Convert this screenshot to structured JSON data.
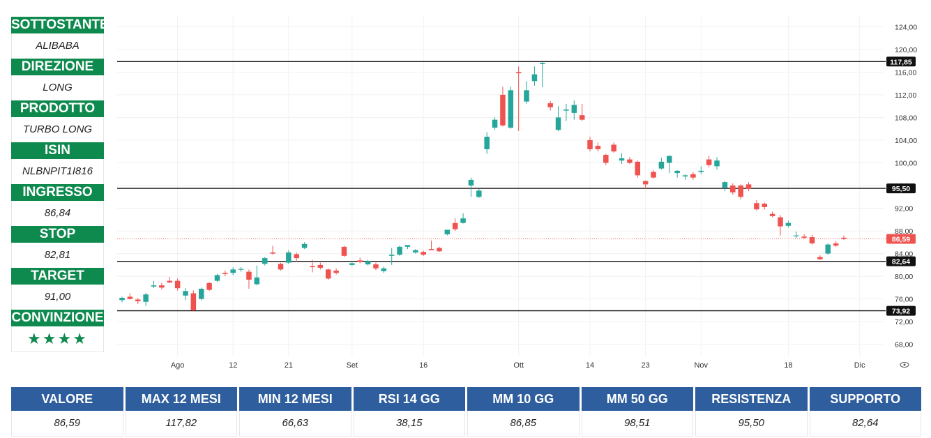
{
  "sidebar": {
    "items": [
      {
        "label": "SOTTOSTANTE",
        "value": "ALIBABA"
      },
      {
        "label": "DIREZIONE",
        "value": "LONG"
      },
      {
        "label": "PRODOTTO",
        "value": "TURBO LONG"
      },
      {
        "label": "ISIN",
        "value": "NLBNPIT1I816"
      },
      {
        "label": "INGRESSO",
        "value": "86,84"
      },
      {
        "label": "STOP",
        "value": "82,81"
      },
      {
        "label": "TARGET",
        "value": "91,00"
      }
    ],
    "conviction_label": "CONVINZIONE",
    "conviction_stars": "★★★★"
  },
  "table": {
    "headers": [
      "VALORE",
      "MAX 12 MESI",
      "MIN 12 MESI",
      "RSI 14 GG",
      "MM 10 GG",
      "MM 50 GG",
      "RESISTENZA",
      "SUPPORTO"
    ],
    "values": [
      "86,59",
      "117,82",
      "66,63",
      "38,15",
      "86,85",
      "98,51",
      "95,50",
      "82,64"
    ]
  },
  "colors": {
    "green": "#0f8a4f",
    "blue": "#2e5e9e",
    "up_candle": "#26a69a",
    "down_candle": "#ef5350"
  },
  "chart_data": {
    "type": "candlestick",
    "ylim": [
      66,
      126
    ],
    "y_ticks": [
      68,
      72,
      76,
      80,
      84,
      88,
      92,
      96,
      100,
      104,
      108,
      112,
      116,
      120,
      124
    ],
    "y_tick_labels": [
      "68,00",
      "72,00",
      "76,00",
      "80,00",
      "84,00",
      "88,00",
      "92,00",
      "96,00",
      "100,00",
      "104,00",
      "108,00",
      "112,00",
      "116,00",
      "120,00",
      "124,00"
    ],
    "x_labels": [
      {
        "label": "Ago",
        "index": 7
      },
      {
        "label": "12",
        "index": 14
      },
      {
        "label": "21",
        "index": 21
      },
      {
        "label": "Set",
        "index": 29
      },
      {
        "label": "16",
        "index": 38
      },
      {
        "label": "Ott",
        "index": 50
      },
      {
        "label": "14",
        "index": 59
      },
      {
        "label": "23",
        "index": 66
      },
      {
        "label": "Nov",
        "index": 73
      },
      {
        "label": "18",
        "index": 84
      },
      {
        "label": "Dic",
        "index": 93
      }
    ],
    "levels": [
      {
        "value": 117.85,
        "label": "117,85",
        "style": "solid"
      },
      {
        "value": 95.5,
        "label": "95,50",
        "style": "solid"
      },
      {
        "value": 82.64,
        "label": "82,64",
        "style": "solid"
      },
      {
        "value": 73.92,
        "label": "73,92",
        "style": "solid"
      }
    ],
    "last_price": {
      "value": 86.59,
      "label": "86,59"
    },
    "ohlc": [
      {
        "o": 75.8,
        "h": 76.4,
        "l": 75.4,
        "c": 76.2
      },
      {
        "o": 76.4,
        "h": 77.0,
        "l": 75.9,
        "c": 76.0
      },
      {
        "o": 75.9,
        "h": 76.2,
        "l": 75.1,
        "c": 75.6
      },
      {
        "o": 75.5,
        "h": 77.1,
        "l": 74.8,
        "c": 76.8
      },
      {
        "o": 78.2,
        "h": 79.2,
        "l": 77.9,
        "c": 78.4
      },
      {
        "o": 78.4,
        "h": 78.8,
        "l": 77.7,
        "c": 78.0
      },
      {
        "o": 79.2,
        "h": 79.9,
        "l": 78.8,
        "c": 78.9
      },
      {
        "o": 79.2,
        "h": 79.6,
        "l": 77.5,
        "c": 77.9
      },
      {
        "o": 76.6,
        "h": 77.9,
        "l": 75.8,
        "c": 77.4
      },
      {
        "o": 77.0,
        "h": 77.5,
        "l": 73.8,
        "c": 74.0
      },
      {
        "o": 76.0,
        "h": 78.0,
        "l": 75.8,
        "c": 77.8
      },
      {
        "o": 78.8,
        "h": 79.0,
        "l": 77.4,
        "c": 77.6
      },
      {
        "o": 79.2,
        "h": 80.4,
        "l": 79.0,
        "c": 80.2
      },
      {
        "o": 80.6,
        "h": 81.0,
        "l": 80.0,
        "c": 80.4
      },
      {
        "o": 80.6,
        "h": 81.6,
        "l": 80.2,
        "c": 81.2
      },
      {
        "o": 81.2,
        "h": 81.6,
        "l": 80.8,
        "c": 81.3
      },
      {
        "o": 80.8,
        "h": 81.2,
        "l": 77.8,
        "c": 79.4
      },
      {
        "o": 78.6,
        "h": 81.9,
        "l": 78.4,
        "c": 79.8
      },
      {
        "o": 82.2,
        "h": 83.4,
        "l": 81.9,
        "c": 83.2
      },
      {
        "o": 84.2,
        "h": 85.4,
        "l": 83.8,
        "c": 84.0
      },
      {
        "o": 82.2,
        "h": 82.4,
        "l": 81.0,
        "c": 81.2
      },
      {
        "o": 82.4,
        "h": 84.6,
        "l": 82.2,
        "c": 84.2
      },
      {
        "o": 83.9,
        "h": 84.2,
        "l": 82.6,
        "c": 83.2
      },
      {
        "o": 85.0,
        "h": 86.0,
        "l": 84.8,
        "c": 85.7
      },
      {
        "o": 81.8,
        "h": 82.9,
        "l": 80.7,
        "c": 81.6
      },
      {
        "o": 82.0,
        "h": 82.4,
        "l": 81.2,
        "c": 81.5
      },
      {
        "o": 81.2,
        "h": 81.4,
        "l": 79.4,
        "c": 79.6
      },
      {
        "o": 81.0,
        "h": 81.4,
        "l": 80.3,
        "c": 80.6
      },
      {
        "o": 85.2,
        "h": 85.4,
        "l": 83.4,
        "c": 83.6
      },
      {
        "o": 82.0,
        "h": 82.4,
        "l": 81.8,
        "c": 82.3
      },
      {
        "o": 82.8,
        "h": 83.3,
        "l": 82.3,
        "c": 82.5
      },
      {
        "o": 82.1,
        "h": 82.9,
        "l": 81.9,
        "c": 82.7
      },
      {
        "o": 82.1,
        "h": 82.4,
        "l": 81.1,
        "c": 81.4
      },
      {
        "o": 80.9,
        "h": 81.7,
        "l": 80.6,
        "c": 81.4
      },
      {
        "o": 83.6,
        "h": 85.0,
        "l": 82.0,
        "c": 83.8
      },
      {
        "o": 83.8,
        "h": 85.4,
        "l": 83.6,
        "c": 85.2
      },
      {
        "o": 85.2,
        "h": 85.5,
        "l": 84.8,
        "c": 85.5
      },
      {
        "o": 84.2,
        "h": 84.8,
        "l": 84.0,
        "c": 84.6
      },
      {
        "o": 84.3,
        "h": 84.5,
        "l": 83.6,
        "c": 83.8
      },
      {
        "o": 84.8,
        "h": 86.3,
        "l": 84.6,
        "c": 84.6
      },
      {
        "o": 85.0,
        "h": 85.2,
        "l": 84.3,
        "c": 84.4
      },
      {
        "o": 87.4,
        "h": 88.2,
        "l": 87.2,
        "c": 88.2
      },
      {
        "o": 89.4,
        "h": 90.2,
        "l": 88.0,
        "c": 88.3
      },
      {
        "o": 89.4,
        "h": 91.1,
        "l": 89.3,
        "c": 90.2
      },
      {
        "o": 96.0,
        "h": 97.4,
        "l": 94.0,
        "c": 97.0
      },
      {
        "o": 94.0,
        "h": 95.4,
        "l": 93.8,
        "c": 95.1
      },
      {
        "o": 102.4,
        "h": 105.4,
        "l": 101.6,
        "c": 104.6
      },
      {
        "o": 106.2,
        "h": 108.0,
        "l": 105.8,
        "c": 107.6
      },
      {
        "o": 112.0,
        "h": 113.4,
        "l": 106.4,
        "c": 106.6
      },
      {
        "o": 106.2,
        "h": 113.4,
        "l": 106.0,
        "c": 112.8
      },
      {
        "o": 116.0,
        "h": 117.0,
        "l": 105.6,
        "c": 115.8
      },
      {
        "o": 110.8,
        "h": 114.4,
        "l": 110.4,
        "c": 112.8
      },
      {
        "o": 114.4,
        "h": 117.0,
        "l": 113.6,
        "c": 115.6
      },
      {
        "o": 117.4,
        "h": 117.8,
        "l": 113.3,
        "c": 117.6
      },
      {
        "o": 110.5,
        "h": 110.9,
        "l": 109.2,
        "c": 109.8
      },
      {
        "o": 105.8,
        "h": 110.0,
        "l": 105.6,
        "c": 108.0
      },
      {
        "o": 109.2,
        "h": 110.4,
        "l": 107.4,
        "c": 109.4
      },
      {
        "o": 108.8,
        "h": 111.0,
        "l": 107.6,
        "c": 110.2
      },
      {
        "o": 108.4,
        "h": 110.4,
        "l": 107.4,
        "c": 107.6
      },
      {
        "o": 104.0,
        "h": 104.6,
        "l": 102.0,
        "c": 102.4
      },
      {
        "o": 103.0,
        "h": 103.6,
        "l": 102.0,
        "c": 102.4
      },
      {
        "o": 101.4,
        "h": 101.6,
        "l": 99.6,
        "c": 100.0
      },
      {
        "o": 103.2,
        "h": 103.6,
        "l": 101.8,
        "c": 102.0
      },
      {
        "o": 100.4,
        "h": 101.7,
        "l": 99.8,
        "c": 100.8
      },
      {
        "o": 100.6,
        "h": 101.0,
        "l": 99.8,
        "c": 100.0
      },
      {
        "o": 100.2,
        "h": 100.4,
        "l": 97.4,
        "c": 97.8
      },
      {
        "o": 96.8,
        "h": 96.9,
        "l": 95.4,
        "c": 96.2
      },
      {
        "o": 98.4,
        "h": 98.7,
        "l": 97.2,
        "c": 97.4
      },
      {
        "o": 99.0,
        "h": 100.9,
        "l": 98.8,
        "c": 100.2
      },
      {
        "o": 100.0,
        "h": 101.4,
        "l": 98.2,
        "c": 101.2
      },
      {
        "o": 98.2,
        "h": 98.7,
        "l": 97.4,
        "c": 98.6
      },
      {
        "o": 97.6,
        "h": 98.0,
        "l": 97.0,
        "c": 97.8
      },
      {
        "o": 98.0,
        "h": 98.4,
        "l": 97.0,
        "c": 97.4
      },
      {
        "o": 98.4,
        "h": 99.4,
        "l": 98.0,
        "c": 98.6
      },
      {
        "o": 100.6,
        "h": 101.2,
        "l": 99.2,
        "c": 99.6
      },
      {
        "o": 99.4,
        "h": 101.0,
        "l": 98.8,
        "c": 100.4
      },
      {
        "o": 95.6,
        "h": 96.8,
        "l": 95.0,
        "c": 96.6
      },
      {
        "o": 96.0,
        "h": 96.4,
        "l": 94.4,
        "c": 94.8
      },
      {
        "o": 96.0,
        "h": 96.2,
        "l": 93.6,
        "c": 94.0
      },
      {
        "o": 96.2,
        "h": 96.6,
        "l": 95.0,
        "c": 95.4
      },
      {
        "o": 92.9,
        "h": 93.4,
        "l": 91.6,
        "c": 91.8
      },
      {
        "o": 92.8,
        "h": 93.0,
        "l": 91.8,
        "c": 92.2
      },
      {
        "o": 91.0,
        "h": 91.4,
        "l": 90.4,
        "c": 90.6
      },
      {
        "o": 90.4,
        "h": 90.8,
        "l": 87.2,
        "c": 88.8
      },
      {
        "o": 88.9,
        "h": 89.8,
        "l": 88.6,
        "c": 89.4
      },
      {
        "o": 87.2,
        "h": 87.9,
        "l": 86.7,
        "c": 87.2
      },
      {
        "o": 87.0,
        "h": 87.4,
        "l": 86.6,
        "c": 86.8
      },
      {
        "o": 86.9,
        "h": 87.3,
        "l": 85.6,
        "c": 85.8
      },
      {
        "o": 83.4,
        "h": 83.7,
        "l": 82.9,
        "c": 83.0
      },
      {
        "o": 84.0,
        "h": 85.8,
        "l": 83.8,
        "c": 85.6
      },
      {
        "o": 85.8,
        "h": 86.2,
        "l": 85.2,
        "c": 85.4
      },
      {
        "o": 86.8,
        "h": 87.2,
        "l": 86.4,
        "c": 86.6
      }
    ]
  }
}
